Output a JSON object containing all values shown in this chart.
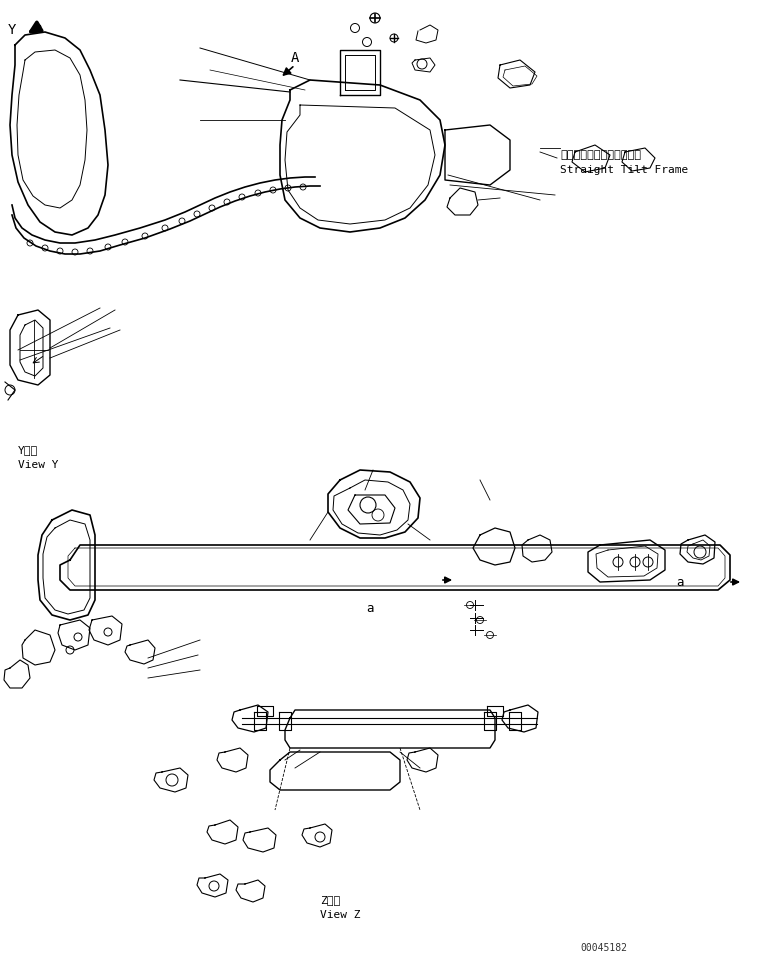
{
  "title": "",
  "background_color": "#ffffff",
  "line_color": "#000000",
  "text_color": "#000000",
  "label_japanese_1": "ストレートチルトフレーム",
  "label_english_1": "Straight Tilt Frame",
  "label_view_y_jp": "Y　視",
  "label_view_y_en": "View Y",
  "label_view_z_jp": "Z　視",
  "label_view_z_en": "View Z",
  "label_a": "a",
  "label_A": "A",
  "label_Y": "Y",
  "part_number": "00045182",
  "fig_width": 7.59,
  "fig_height": 9.58,
  "dpi": 100
}
